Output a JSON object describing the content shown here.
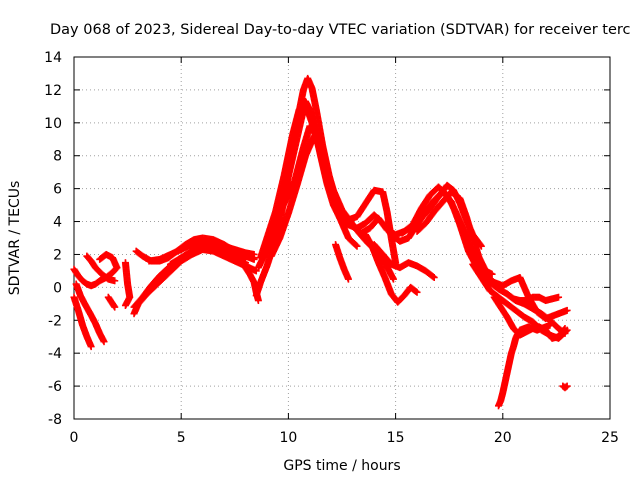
{
  "chart_data": {
    "type": "scatter",
    "title": "Day 068 of 2023, Sidereal Day-to-day VTEC variation (SDTVAR) for receiver terc",
    "xlabel": "GPS time / hours",
    "ylabel": "SDTVAR / TECUs",
    "xlim": [
      0,
      25
    ],
    "ylim": [
      -8,
      14
    ],
    "xticks": [
      0,
      5,
      10,
      15,
      20,
      25
    ],
    "yticks": [
      -8,
      -6,
      -4,
      -2,
      0,
      2,
      4,
      6,
      8,
      10,
      12,
      14
    ],
    "grid": true,
    "marker": "+",
    "color": "#ff0000",
    "series": [
      {
        "name": "sdtvar",
        "tracks": [
          {
            "x": [
              0.0,
              0.2,
              0.4,
              0.6,
              0.8,
              1.0,
              1.2,
              1.5,
              1.8,
              2.0
            ],
            "y": [
              1.1,
              0.7,
              0.4,
              0.2,
              0.1,
              0.2,
              0.4,
              0.6,
              0.9,
              1.2
            ]
          },
          {
            "x": [
              0.0,
              0.2,
              0.4,
              0.6,
              0.8
            ],
            "y": [
              -0.6,
              -1.4,
              -2.3,
              -3.0,
              -3.6
            ]
          },
          {
            "x": [
              0.1,
              0.3,
              0.5,
              0.8,
              1.0,
              1.2,
              1.4
            ],
            "y": [
              0.2,
              -0.5,
              -1.0,
              -1.7,
              -2.2,
              -2.8,
              -3.3
            ]
          },
          {
            "x": [
              0.6,
              0.8,
              1.0,
              1.3,
              1.6,
              1.9
            ],
            "y": [
              1.9,
              1.6,
              1.2,
              0.8,
              0.5,
              0.4
            ]
          },
          {
            "x": [
              1.2,
              1.5,
              1.8,
              2.0
            ],
            "y": [
              1.7,
              2.0,
              1.8,
              1.2
            ]
          },
          {
            "x": [
              1.6,
              1.8,
              1.9
            ],
            "y": [
              -0.6,
              -1.0,
              -1.2
            ]
          },
          {
            "x": [
              2.4,
              2.5,
              2.6,
              2.4
            ],
            "y": [
              1.5,
              0.2,
              -0.6,
              -1.1
            ]
          },
          {
            "x": [
              2.8,
              3.0,
              3.4,
              3.8,
              4.2,
              4.6,
              5.0,
              5.5,
              6.0,
              6.5,
              7.0,
              7.5,
              8.0,
              8.5
            ],
            "y": [
              -1.6,
              -1.0,
              -0.4,
              0.1,
              0.6,
              1.1,
              1.6,
              2.0,
              2.3,
              2.2,
              1.9,
              1.6,
              1.3,
              1.0
            ]
          },
          {
            "x": [
              2.8,
              3.2,
              3.6,
              4.0,
              4.5,
              5.0,
              5.5,
              6.0,
              6.5,
              7.0,
              7.5,
              8.0
            ],
            "y": [
              -1.2,
              -0.6,
              0.1,
              0.7,
              1.3,
              1.8,
              2.2,
              2.4,
              2.3,
              2.1,
              1.8,
              1.5
            ]
          },
          {
            "x": [
              2.9,
              3.2,
              3.6,
              4.0,
              4.4,
              4.8,
              5.2,
              5.6,
              6.0,
              6.5,
              7.0,
              7.5,
              8.0,
              8.4
            ],
            "y": [
              2.2,
              1.9,
              1.6,
              1.6,
              1.8,
              2.2,
              2.6,
              2.9,
              3.0,
              2.9,
              2.6,
              2.2,
              1.9,
              1.7
            ]
          },
          {
            "x": [
              3.5,
              4.0,
              4.5,
              5.0,
              5.5,
              6.0,
              6.5,
              7.0,
              7.5,
              8.0,
              8.4
            ],
            "y": [
              1.6,
              1.7,
              2.0,
              2.3,
              2.6,
              2.8,
              2.7,
              2.5,
              2.3,
              2.1,
              2.0
            ]
          },
          {
            "x": [
              4.5,
              5.0,
              5.5,
              6.0,
              6.5,
              7.0,
              7.5,
              8.0,
              8.4
            ],
            "y": [
              1.4,
              1.8,
              2.2,
              2.5,
              2.5,
              2.3,
              2.1,
              1.9,
              1.8
            ]
          },
          {
            "x": [
              8.0,
              8.2,
              8.4,
              8.5,
              8.6
            ],
            "y": [
              1.2,
              0.8,
              0.3,
              -0.3,
              -0.8
            ]
          },
          {
            "x": [
              8.5,
              8.7,
              9.0,
              9.3,
              9.6,
              9.9,
              10.2,
              10.5,
              10.7,
              10.9,
              11.1,
              11.3,
              11.6,
              11.9,
              12.2,
              12.5,
              12.8,
              13.2,
              13.6,
              14.0,
              14.4,
              14.6,
              14.8,
              15.0
            ],
            "y": [
              -0.5,
              0.3,
              1.3,
              2.5,
              4.0,
              6.0,
              8.4,
              10.7,
              12.0,
              12.7,
              12.1,
              10.8,
              8.6,
              6.8,
              5.4,
              4.5,
              4.1,
              4.3,
              5.1,
              5.9,
              5.8,
              4.6,
              3.0,
              1.5
            ]
          },
          {
            "x": [
              8.6,
              9.0,
              9.4,
              9.8,
              10.2,
              10.6,
              10.8,
              11.0,
              11.2,
              11.5,
              11.8,
              12.1,
              12.4,
              12.8,
              13.2,
              13.6,
              14.0,
              14.4,
              14.8,
              15.2,
              15.6,
              16.0,
              16.4,
              16.8,
              17.2,
              17.6,
              18.0,
              18.4,
              18.8
            ],
            "y": [
              1.2,
              2.3,
              3.6,
              5.6,
              7.9,
              10.2,
              11.3,
              10.8,
              9.8,
              8.0,
              6.3,
              5.0,
              4.2,
              3.8,
              3.6,
              3.9,
              4.4,
              3.9,
              3.2,
              2.8,
              3.0,
              3.8,
              4.6,
              5.3,
              5.8,
              5.2,
              3.8,
              2.2,
              1.2
            ]
          },
          {
            "x": [
              8.7,
              9.0,
              9.4,
              9.8,
              10.2,
              10.5,
              10.8,
              11.1,
              11.4,
              11.8,
              12.2,
              12.6,
              13.0,
              13.4,
              13.8,
              14.2,
              14.6,
              15.0,
              15.4,
              15.8,
              16.2,
              16.6,
              17.0,
              17.4,
              17.8,
              18.2,
              18.6,
              19.0
            ],
            "y": [
              1.8,
              3.0,
              4.6,
              6.8,
              9.3,
              10.8,
              11.1,
              10.0,
              8.6,
              6.6,
              5.2,
              4.3,
              3.7,
              3.3,
              3.6,
              4.2,
              3.5,
              3.2,
              3.4,
              3.8,
              4.8,
              5.6,
              6.1,
              5.6,
              4.6,
              3.4,
              2.0,
              1.0
            ]
          },
          {
            "x": [
              9.0,
              9.5,
              9.9,
              10.3,
              10.7,
              11.0,
              11.3,
              11.7,
              12.1,
              12.5,
              12.9,
              13.3,
              13.7,
              14.1,
              14.5,
              14.9
            ],
            "y": [
              2.6,
              4.2,
              5.4,
              6.5,
              8.5,
              9.8,
              9.2,
              7.5,
              5.9,
              4.7,
              4.0,
              3.3,
              2.7,
              2.2,
              1.5,
              0.5
            ]
          },
          {
            "x": [
              9.2,
              9.6,
              10.0,
              10.4,
              10.8,
              11.2,
              11.6,
              12.0,
              12.4,
              12.8,
              13.2
            ],
            "y": [
              1.9,
              3.0,
              4.5,
              6.2,
              8.0,
              9.2,
              8.2,
              6.0,
              4.2,
              3.0,
              2.5
            ]
          },
          {
            "x": [
              12.2,
              12.4,
              12.6,
              12.8
            ],
            "y": [
              2.6,
              1.8,
              1.1,
              0.5
            ]
          },
          {
            "x": [
              13.6,
              13.9,
              14.2,
              14.5,
              14.8,
              15.1,
              15.4,
              15.7,
              16.0
            ],
            "y": [
              3.2,
              2.5,
              1.5,
              0.6,
              -0.4,
              -0.9,
              -0.5,
              0.0,
              -0.3
            ]
          },
          {
            "x": [
              14.0,
              14.4,
              14.8,
              15.2,
              15.6,
              16.0,
              16.4,
              16.8
            ],
            "y": [
              2.6,
              2.0,
              1.4,
              1.2,
              1.5,
              1.3,
              1.0,
              0.6
            ]
          },
          {
            "x": [
              15.3,
              15.8,
              16.2,
              16.6,
              17.0,
              17.4,
              17.7,
              18.0,
              18.3,
              18.6,
              19.0
            ],
            "y": [
              3.3,
              3.7,
              4.2,
              4.8,
              5.5,
              6.2,
              5.9,
              5.1,
              4.1,
              3.2,
              2.5
            ]
          },
          {
            "x": [
              16.0,
              16.4,
              16.8,
              17.2,
              17.6,
              18.0,
              18.3,
              18.6,
              18.9,
              19.2,
              19.5
            ],
            "y": [
              3.4,
              3.9,
              4.6,
              5.2,
              5.8,
              5.4,
              4.3,
              3.0,
              1.8,
              1.0,
              0.8
            ]
          },
          {
            "x": [
              18.4,
              18.8,
              19.2,
              19.6,
              20.0,
              20.4,
              20.8,
              21.2,
              21.6,
              22.0,
              22.4,
              22.8,
              23.0
            ],
            "y": [
              2.4,
              1.6,
              0.7,
              0.3,
              0.1,
              0.4,
              0.6,
              -0.6,
              -1.5,
              -1.9,
              -1.7,
              -1.5,
              -1.4
            ]
          },
          {
            "x": [
              18.6,
              19.0,
              19.4,
              19.8,
              20.2,
              20.6,
              21.0,
              21.4,
              21.8,
              22.2,
              22.6,
              23.0
            ],
            "y": [
              1.4,
              0.6,
              -0.2,
              -0.6,
              -1.0,
              -1.4,
              -1.8,
              -2.1,
              -2.6,
              -2.9,
              -3.1,
              -2.6
            ]
          },
          {
            "x": [
              19.0,
              19.4,
              19.8,
              20.2,
              20.6,
              21.0,
              21.4,
              21.8,
              22.2,
              22.6,
              22.9
            ],
            "y": [
              0.9,
              0.3,
              -0.1,
              -0.4,
              -0.8,
              -1.0,
              -1.3,
              -1.6,
              -2.0,
              -2.5,
              -2.8
            ]
          },
          {
            "x": [
              19.6,
              19.9,
              20.2,
              20.5,
              20.8,
              21.1,
              21.4,
              21.7,
              22.0,
              22.3,
              22.6,
              22.9
            ],
            "y": [
              -0.6,
              -1.2,
              -1.8,
              -2.5,
              -2.9,
              -2.7,
              -2.5,
              -2.4,
              -2.6,
              -3.1,
              -3.0,
              -2.5
            ]
          },
          {
            "x": [
              20.2,
              20.5,
              20.8,
              21.1,
              21.4,
              21.7,
              22.0,
              22.3,
              22.6
            ],
            "y": [
              -0.4,
              -0.7,
              -0.8,
              -0.8,
              -0.6,
              -0.6,
              -0.8,
              -0.7,
              -0.6
            ]
          },
          {
            "x": [
              19.8,
              19.9,
              20.0,
              20.1,
              20.2,
              20.3,
              20.4,
              20.5,
              20.6,
              20.7,
              20.8,
              21.0,
              21.2,
              21.4,
              21.6,
              21.8,
              22.0,
              22.2
            ],
            "y": [
              -7.2,
              -6.9,
              -6.4,
              -5.8,
              -5.2,
              -4.6,
              -4.0,
              -3.6,
              -3.1,
              -2.8,
              -2.6,
              -2.5,
              -2.4,
              -2.5,
              -2.6,
              -2.5,
              -2.4,
              -2.3
            ]
          },
          {
            "x": [
              22.8,
              22.9,
              23.0
            ],
            "y": [
              -6.0,
              -6.1,
              -6.0
            ]
          }
        ]
      }
    ]
  }
}
